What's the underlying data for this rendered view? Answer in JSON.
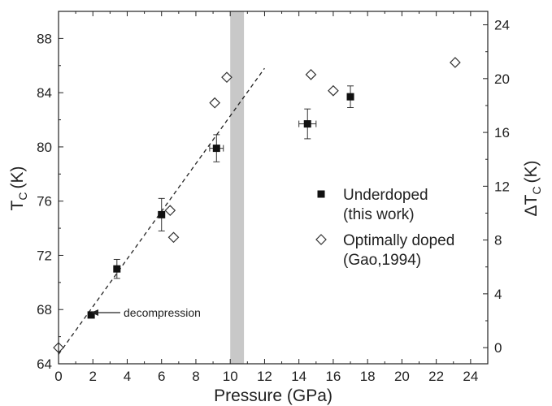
{
  "chart_data": {
    "type": "scatter",
    "xlabel": "Pressure (GPa)",
    "ylabel_left": {
      "main": "T",
      "sub": "C",
      "unit": "(K)"
    },
    "ylabel_right": {
      "prefix": "ΔT",
      "sub": "C",
      "unit": "(K)"
    },
    "xlim": [
      0,
      25
    ],
    "ylim_left": [
      64,
      90
    ],
    "ylim_right": [
      -1.2,
      25
    ],
    "x_ticks": [
      "0",
      "2",
      "4",
      "6",
      "8",
      "10",
      "12",
      "14",
      "16",
      "18",
      "20",
      "22",
      "24"
    ],
    "y_left_ticks": [
      "64",
      "68",
      "72",
      "76",
      "80",
      "84",
      "88"
    ],
    "y_right_ticks": [
      "0",
      "4",
      "8",
      "12",
      "16",
      "20",
      "24"
    ],
    "grid": false,
    "legend_position": "center-right",
    "shaded_band": {
      "x_from": 10.0,
      "x_to": 10.8
    },
    "fit_line": {
      "style": "dashed",
      "from": [
        0,
        64.7
      ],
      "to": [
        12,
        85.8
      ]
    },
    "series": [
      {
        "name_line1": "Underdoped",
        "name_line2": "(this work)",
        "axis": "left",
        "marker": "filled-square",
        "points": [
          {
            "x": 1.9,
            "y": 67.6
          },
          {
            "x": 3.4,
            "y": 71.0,
            "yerr": 0.7
          },
          {
            "x": 6.0,
            "y": 75.0,
            "yerr": 1.2
          },
          {
            "x": 9.2,
            "y": 79.9,
            "yerr": 1.0,
            "xerr": 0.4
          },
          {
            "x": 14.5,
            "y": 81.7,
            "yerr": 1.1,
            "xerr": 0.5
          },
          {
            "x": 17.0,
            "y": 83.7,
            "yerr": 0.8
          }
        ]
      },
      {
        "name_line1": "Optimally doped",
        "name_line2": "(Gao,1994)",
        "axis": "right",
        "marker": "open-diamond",
        "points": [
          {
            "x": 0.0,
            "y": 0.0
          },
          {
            "x": 6.5,
            "y": 10.2
          },
          {
            "x": 6.7,
            "y": 8.2
          },
          {
            "x": 9.1,
            "y": 18.2
          },
          {
            "x": 9.8,
            "y": 20.1
          },
          {
            "x": 14.7,
            "y": 20.3
          },
          {
            "x": 16.0,
            "y": 19.1
          },
          {
            "x": 23.1,
            "y": 21.2
          }
        ]
      }
    ],
    "annotations": [
      {
        "text": "decompression",
        "arrow_to_series": 0,
        "arrow_to_point": 0
      }
    ]
  }
}
